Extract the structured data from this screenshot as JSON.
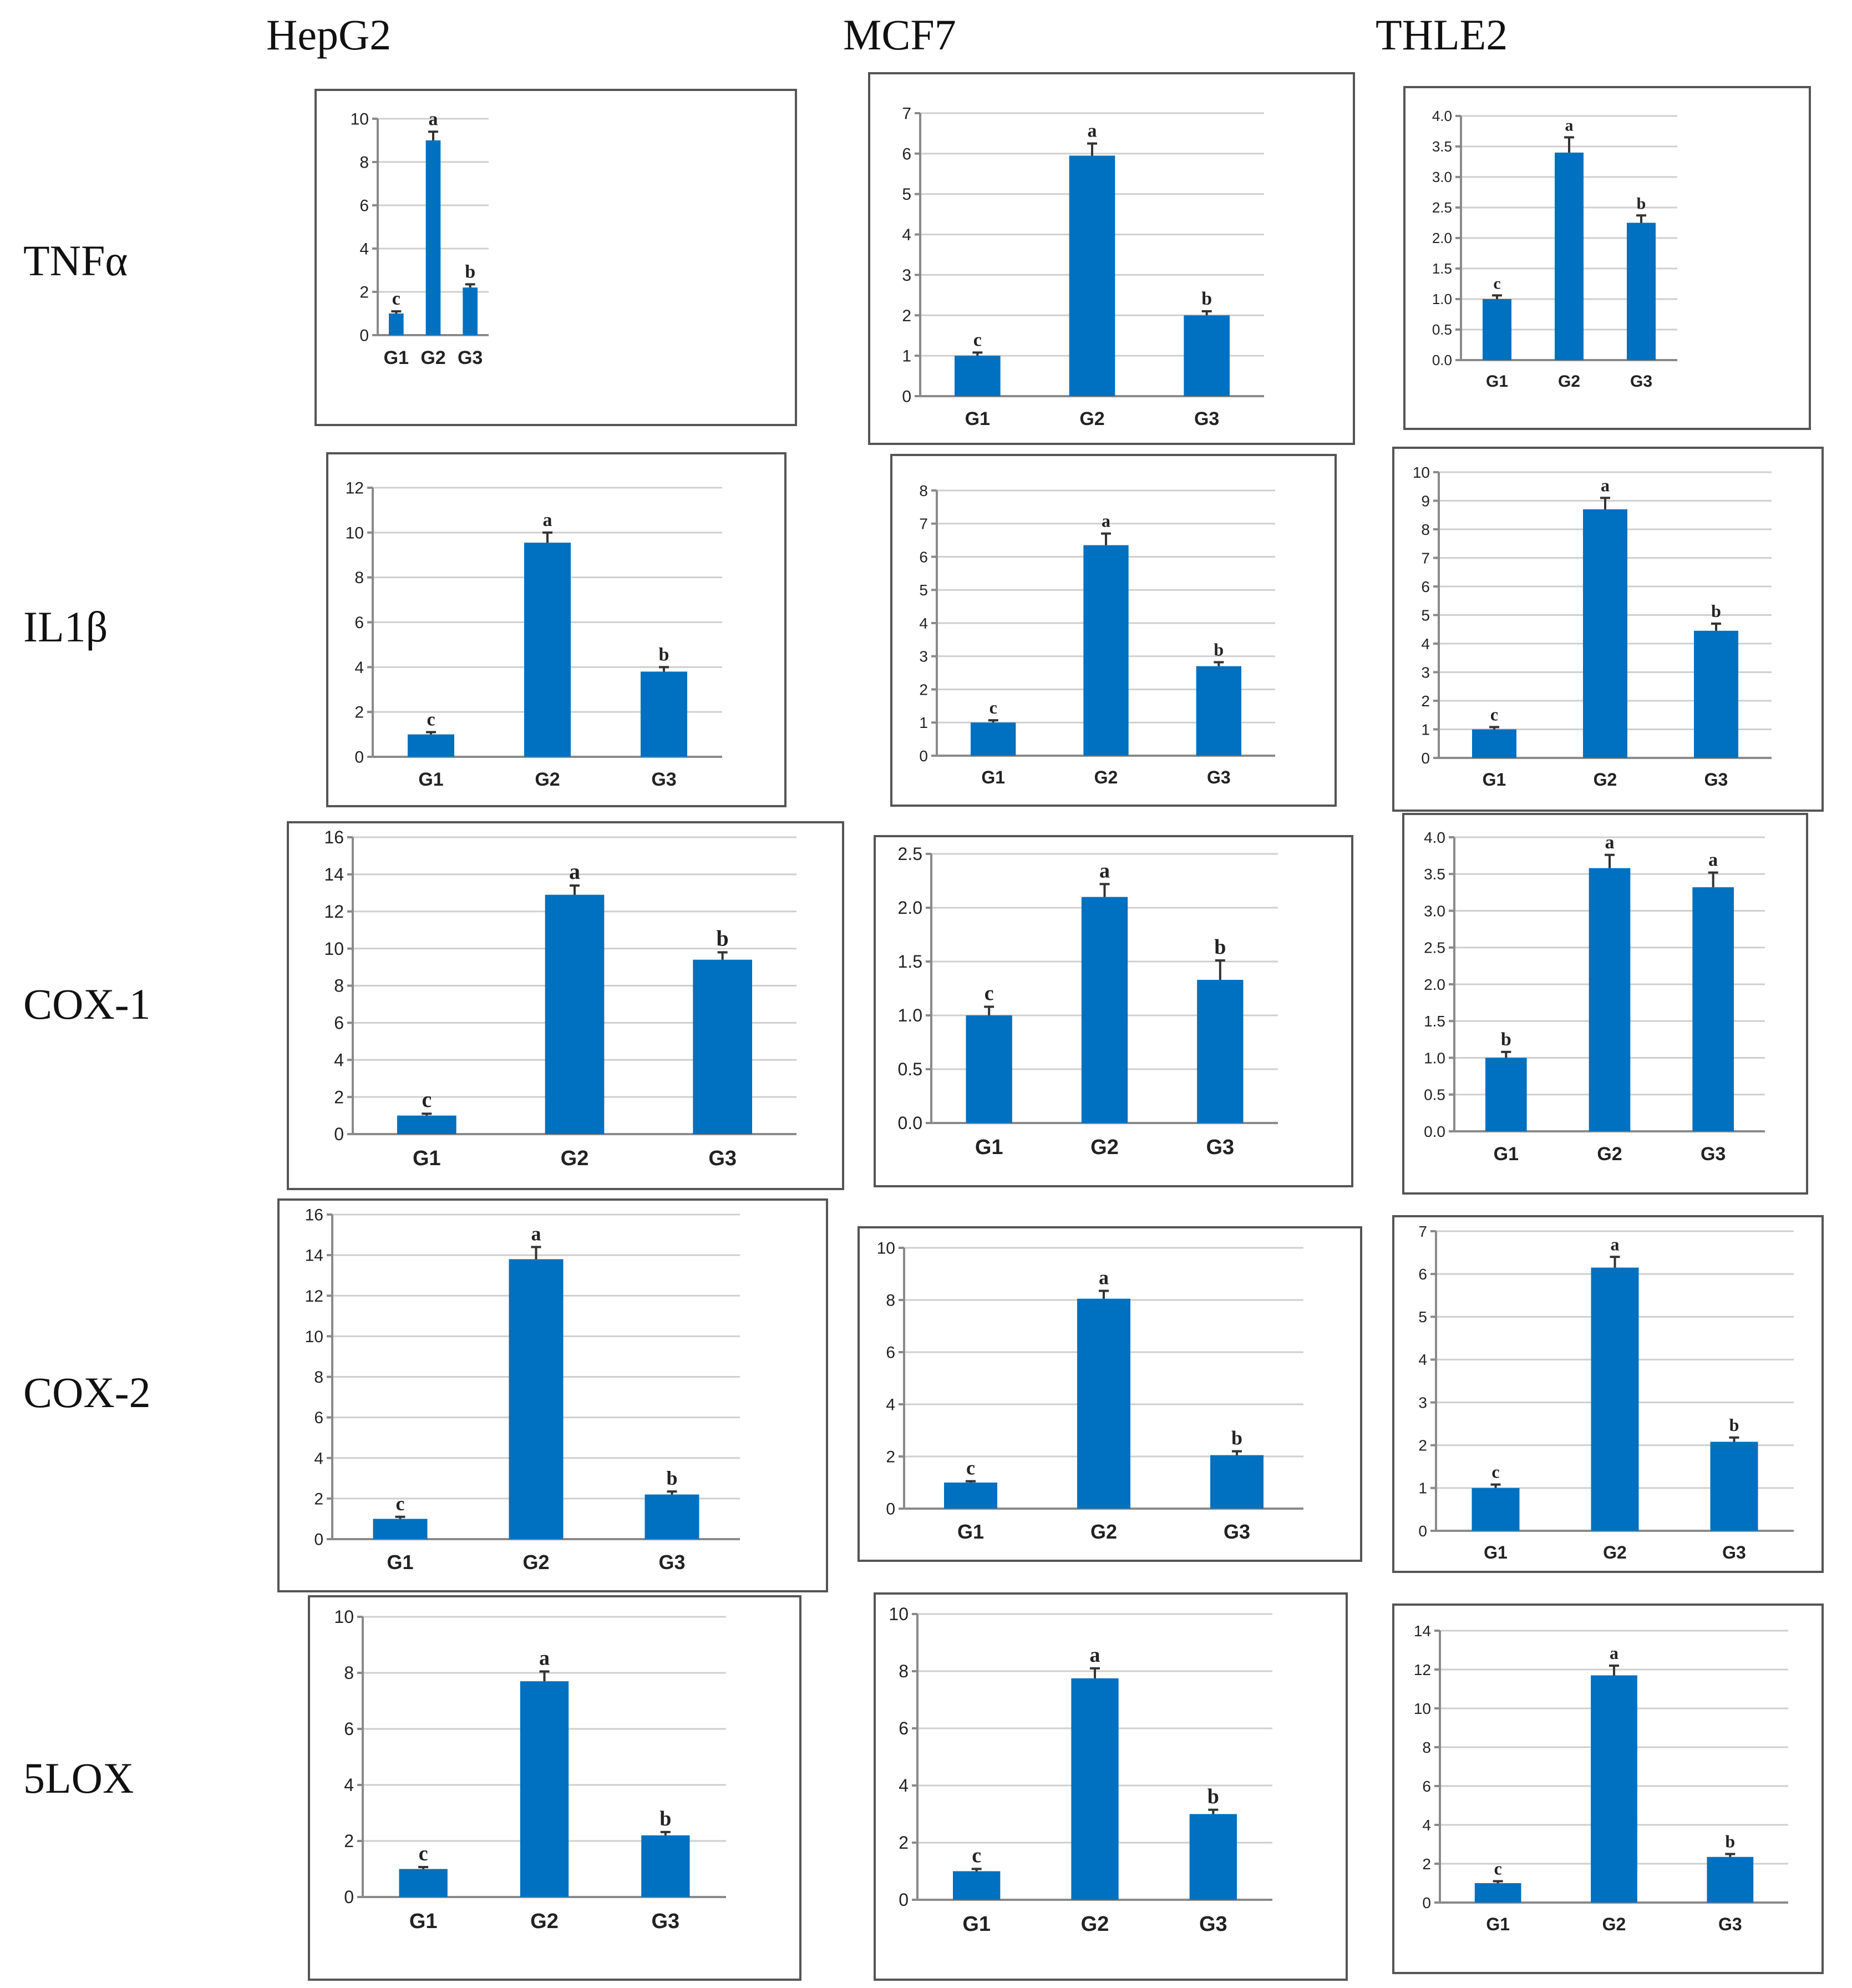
{
  "columns": [
    "HepG2",
    "MCF7",
    "THLE2"
  ],
  "rows": [
    "TNFα",
    "IL1β",
    "COX-1",
    "COX-2",
    "5LOX"
  ],
  "bar_color": "#0070c0",
  "chart_data": [
    {
      "type": "bar",
      "cell_line": "HepG2",
      "gene": "TNFα",
      "categories": [
        "G1",
        "G2",
        "G3"
      ],
      "values": [
        1.0,
        9.0,
        2.2
      ],
      "errors": [
        0.1,
        0.4,
        0.15
      ],
      "letters": [
        "c",
        "a",
        "b"
      ],
      "yticks": [
        "0",
        "2",
        "4",
        "6",
        "8",
        "10"
      ],
      "ylim": [
        0,
        10
      ]
    },
    {
      "type": "bar",
      "cell_line": "MCF7",
      "gene": "TNFα",
      "categories": [
        "G1",
        "G2",
        "G3"
      ],
      "values": [
        1.0,
        5.95,
        2.0
      ],
      "errors": [
        0.08,
        0.3,
        0.1
      ],
      "letters": [
        "c",
        "a",
        "b"
      ],
      "yticks": [
        "0",
        "1",
        "2",
        "3",
        "4",
        "5",
        "6",
        "7"
      ],
      "ylim": [
        0,
        7
      ]
    },
    {
      "type": "bar",
      "cell_line": "THLE2",
      "gene": "TNFα",
      "categories": [
        "G1",
        "G2",
        "G3"
      ],
      "values": [
        1.0,
        3.4,
        2.25
      ],
      "errors": [
        0.06,
        0.25,
        0.12
      ],
      "letters": [
        "c",
        "a",
        "b"
      ],
      "yticks": [
        "0.0",
        "0.5",
        "1.0",
        "1.5",
        "2.0",
        "2.5",
        "3.0",
        "3.5",
        "4.0"
      ],
      "ylim": [
        0,
        4
      ]
    },
    {
      "type": "bar",
      "cell_line": "HepG2",
      "gene": "IL1β",
      "categories": [
        "G1",
        "G2",
        "G3"
      ],
      "values": [
        1.0,
        9.55,
        3.8
      ],
      "errors": [
        0.1,
        0.45,
        0.2
      ],
      "letters": [
        "c",
        "a",
        "b"
      ],
      "yticks": [
        "0",
        "2",
        "4",
        "6",
        "8",
        "10",
        "12"
      ],
      "ylim": [
        0,
        12
      ]
    },
    {
      "type": "bar",
      "cell_line": "MCF7",
      "gene": "IL1β",
      "categories": [
        "G1",
        "G2",
        "G3"
      ],
      "values": [
        1.0,
        6.35,
        2.7
      ],
      "errors": [
        0.07,
        0.35,
        0.12
      ],
      "letters": [
        "c",
        "a",
        "b"
      ],
      "yticks": [
        "0",
        "1",
        "2",
        "3",
        "4",
        "5",
        "6",
        "7",
        "8"
      ],
      "ylim": [
        0,
        8
      ]
    },
    {
      "type": "bar",
      "cell_line": "THLE2",
      "gene": "IL1β",
      "categories": [
        "G1",
        "G2",
        "G3"
      ],
      "values": [
        1.0,
        8.7,
        4.45
      ],
      "errors": [
        0.08,
        0.4,
        0.25
      ],
      "letters": [
        "c",
        "a",
        "b"
      ],
      "yticks": [
        "0",
        "1",
        "2",
        "3",
        "4",
        "5",
        "6",
        "7",
        "8",
        "9",
        "10"
      ],
      "ylim": [
        0,
        10
      ]
    },
    {
      "type": "bar",
      "cell_line": "HepG2",
      "gene": "COX-1",
      "categories": [
        "G1",
        "G2",
        "G3"
      ],
      "values": [
        1.0,
        12.9,
        9.4
      ],
      "errors": [
        0.1,
        0.5,
        0.4
      ],
      "letters": [
        "c",
        "a",
        "b"
      ],
      "yticks": [
        "0",
        "2",
        "4",
        "6",
        "8",
        "10",
        "12",
        "14",
        "16"
      ],
      "ylim": [
        0,
        16
      ]
    },
    {
      "type": "bar",
      "cell_line": "MCF7",
      "gene": "COX-1",
      "categories": [
        "G1",
        "G2",
        "G3"
      ],
      "values": [
        1.0,
        2.1,
        1.33
      ],
      "errors": [
        0.08,
        0.12,
        0.18
      ],
      "letters": [
        "c",
        "a",
        "b"
      ],
      "yticks": [
        "0.0",
        "0.5",
        "1.0",
        "1.5",
        "2.0",
        "2.5"
      ],
      "ylim": [
        0,
        2.5
      ]
    },
    {
      "type": "bar",
      "cell_line": "THLE2",
      "gene": "COX-1",
      "categories": [
        "G1",
        "G2",
        "G3"
      ],
      "values": [
        1.0,
        3.58,
        3.32
      ],
      "errors": [
        0.08,
        0.18,
        0.2
      ],
      "letters": [
        "b",
        "a",
        "a"
      ],
      "yticks": [
        "0.0",
        "0.5",
        "1.0",
        "1.5",
        "2.0",
        "2.5",
        "3.0",
        "3.5",
        "4.0"
      ],
      "ylim": [
        0,
        4
      ]
    },
    {
      "type": "bar",
      "cell_line": "HepG2",
      "gene": "COX-2",
      "categories": [
        "G1",
        "G2",
        "G3"
      ],
      "values": [
        1.0,
        13.8,
        2.2
      ],
      "errors": [
        0.1,
        0.6,
        0.15
      ],
      "letters": [
        "c",
        "a",
        "b"
      ],
      "yticks": [
        "0",
        "2",
        "4",
        "6",
        "8",
        "10",
        "12",
        "14",
        "16"
      ],
      "ylim": [
        0,
        16
      ]
    },
    {
      "type": "bar",
      "cell_line": "MCF7",
      "gene": "COX-2",
      "categories": [
        "G1",
        "G2",
        "G3"
      ],
      "values": [
        1.0,
        8.05,
        2.05
      ],
      "errors": [
        0.05,
        0.3,
        0.15
      ],
      "letters": [
        "c",
        "a",
        "b"
      ],
      "yticks": [
        "0",
        "2",
        "4",
        "6",
        "8",
        "10"
      ],
      "ylim": [
        0,
        10
      ]
    },
    {
      "type": "bar",
      "cell_line": "THLE2",
      "gene": "COX-2",
      "categories": [
        "G1",
        "G2",
        "G3"
      ],
      "values": [
        1.0,
        6.15,
        2.08
      ],
      "errors": [
        0.08,
        0.25,
        0.1
      ],
      "letters": [
        "c",
        "a",
        "b"
      ],
      "yticks": [
        "0",
        "1",
        "2",
        "3",
        "4",
        "5",
        "6",
        "7"
      ],
      "ylim": [
        0,
        7
      ]
    },
    {
      "type": "bar",
      "cell_line": "HepG2",
      "gene": "5LOX",
      "categories": [
        "G1",
        "G2",
        "G3"
      ],
      "values": [
        1.0,
        7.7,
        2.2
      ],
      "errors": [
        0.07,
        0.35,
        0.12
      ],
      "letters": [
        "c",
        "a",
        "b"
      ],
      "yticks": [
        "0",
        "2",
        "4",
        "6",
        "8",
        "10"
      ],
      "ylim": [
        0,
        10
      ]
    },
    {
      "type": "bar",
      "cell_line": "MCF7",
      "gene": "5LOX",
      "categories": [
        "G1",
        "G2",
        "G3"
      ],
      "values": [
        1.0,
        7.75,
        3.0
      ],
      "errors": [
        0.08,
        0.35,
        0.15
      ],
      "letters": [
        "c",
        "a",
        "b"
      ],
      "yticks": [
        "0",
        "2",
        "4",
        "6",
        "8",
        "10"
      ],
      "ylim": [
        0,
        10
      ]
    },
    {
      "type": "bar",
      "cell_line": "THLE2",
      "gene": "5LOX",
      "categories": [
        "G1",
        "G2",
        "G3"
      ],
      "values": [
        1.0,
        11.7,
        2.35
      ],
      "errors": [
        0.1,
        0.5,
        0.15
      ],
      "letters": [
        "c",
        "a",
        "b"
      ],
      "yticks": [
        "0",
        "2",
        "4",
        "6",
        "8",
        "10",
        "12",
        "14"
      ],
      "ylim": [
        0,
        14
      ]
    }
  ]
}
